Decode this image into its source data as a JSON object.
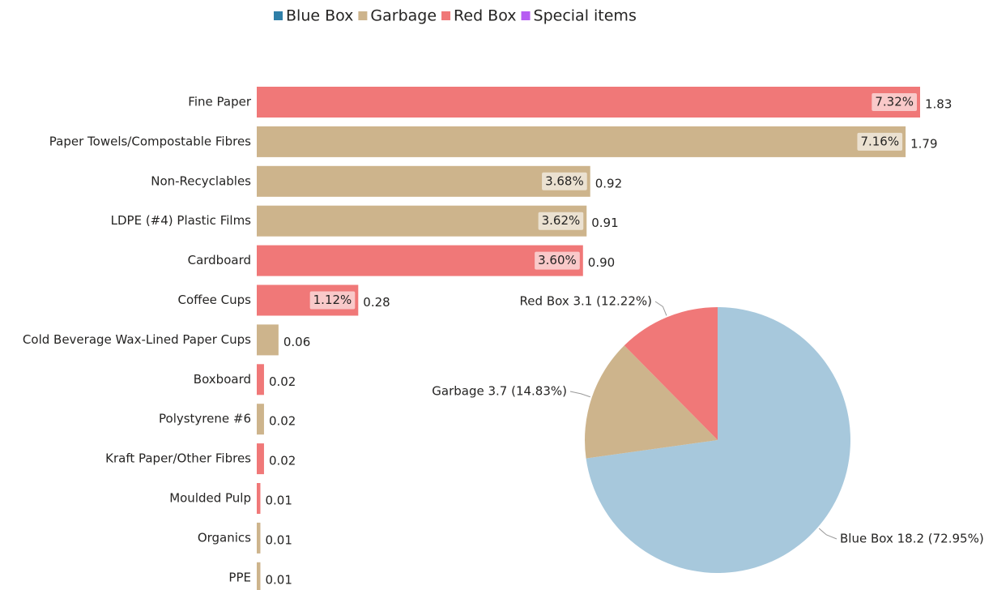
{
  "chart_data": [
    {
      "type": "bar",
      "orientation": "horizontal",
      "legend": [
        {
          "name": "Blue Box",
          "color": "#2f7fa8"
        },
        {
          "name": "Garbage",
          "color": "#cdb48c"
        },
        {
          "name": "Red Box",
          "color": "#f07878"
        },
        {
          "name": "Special items",
          "color": "#b65cf2"
        }
      ],
      "legend_position": "top",
      "categories": [
        "Fine Paper",
        "Paper Towels/Compostable Fibres",
        "Non-Recyclables",
        "LDPE (#4) Plastic Films",
        "Cardboard",
        "Coffee Cups",
        "Cold Beverage Wax-Lined Paper Cups",
        "Boxboard",
        "Polystyrene #6",
        "Kraft Paper/Other Fibres",
        "Moulded Pulp",
        "Organics",
        "PPE"
      ],
      "groups": [
        "Red Box",
        "Garbage",
        "Garbage",
        "Garbage",
        "Red Box",
        "Red Box",
        "Garbage",
        "Red Box",
        "Garbage",
        "Red Box",
        "Red Box",
        "Garbage",
        "Garbage"
      ],
      "values": [
        1.83,
        1.79,
        0.92,
        0.91,
        0.9,
        0.28,
        0.06,
        0.02,
        0.02,
        0.02,
        0.01,
        0.01,
        0.01
      ],
      "value_labels": [
        "1.83",
        "1.79",
        "0.92",
        "0.91",
        "0.90",
        "0.28",
        "0.06",
        "0.02",
        "0.02",
        "0.02",
        "0.01",
        "0.01",
        "0.01"
      ],
      "percent_values": [
        7.32,
        7.16,
        3.68,
        3.62,
        3.6,
        1.12,
        null,
        null,
        null,
        null,
        null,
        null,
        null
      ],
      "percent_labels": [
        "7.32%",
        "7.16%",
        "3.68%",
        "3.62%",
        "3.60%",
        "1.12%",
        null,
        null,
        null,
        null,
        null,
        null,
        null
      ],
      "xlim": [
        0,
        1.83
      ]
    },
    {
      "type": "pie",
      "categories": [
        "Blue Box",
        "Garbage",
        "Red Box"
      ],
      "values": [
        18.2,
        3.7,
        3.1
      ],
      "percent_values": [
        72.95,
        14.83,
        12.22
      ],
      "value_labels": [
        "Blue Box 18.2 (72.95%)",
        "Garbage 3.7 (14.83%)",
        "Red Box 3.1 (12.22%)"
      ],
      "colors": [
        "#a7c8dc",
        "#cdb48c",
        "#f07878"
      ]
    }
  ]
}
